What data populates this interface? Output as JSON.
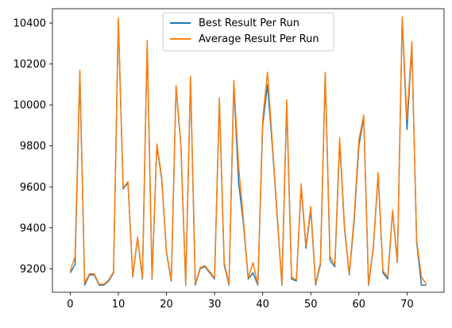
{
  "chart_data": {
    "type": "line",
    "title": "",
    "xlabel": "",
    "ylabel": "",
    "xlim": [
      -3.7,
      77.7
    ],
    "ylim": [
      9085,
      10470
    ],
    "xticks": [
      0,
      10,
      20,
      30,
      40,
      50,
      60,
      70
    ],
    "yticks": [
      9200,
      9400,
      9600,
      9800,
      10000,
      10200,
      10400
    ],
    "grid": false,
    "legend_position": "top-center",
    "x": [
      0,
      1,
      2,
      3,
      4,
      5,
      6,
      7,
      8,
      9,
      10,
      11,
      12,
      13,
      14,
      15,
      16,
      17,
      18,
      19,
      20,
      21,
      22,
      23,
      24,
      25,
      26,
      27,
      28,
      29,
      30,
      31,
      32,
      33,
      34,
      35,
      36,
      37,
      38,
      39,
      40,
      41,
      42,
      43,
      44,
      45,
      46,
      47,
      48,
      49,
      50,
      51,
      52,
      53,
      54,
      55,
      56,
      57,
      58,
      59,
      60,
      61,
      62,
      63,
      64,
      65,
      66,
      67,
      68,
      69,
      70,
      71,
      72,
      73,
      74
    ],
    "series": [
      {
        "name": "Best Result Per Run",
        "color": "#1f77b4",
        "values": [
          9180,
          9220,
          10150,
          9120,
          9170,
          9170,
          9120,
          9120,
          9140,
          9180,
          10410,
          9590,
          9620,
          9160,
          9350,
          9150,
          10300,
          9150,
          9800,
          9640,
          9280,
          9140,
          10090,
          9800,
          9120,
          10130,
          9120,
          9200,
          9210,
          9180,
          9150,
          10020,
          9220,
          9120,
          10100,
          9620,
          9420,
          9150,
          9180,
          9120,
          9900,
          10100,
          9800,
          9460,
          9120,
          10010,
          9150,
          9140,
          9600,
          9300,
          9490,
          9120,
          9220,
          10150,
          9240,
          9210,
          9820,
          9400,
          9170,
          9430,
          9800,
          9940,
          9120,
          9300,
          9660,
          9180,
          9150,
          9480,
          9230,
          10420,
          9880,
          10290,
          9330,
          9120,
          9120
        ]
      },
      {
        "name": "Average Result Per Run",
        "color": "#ff7f0e",
        "values": [
          9190,
          9260,
          10170,
          9130,
          9175,
          9175,
          9125,
          9125,
          9145,
          9185,
          10425,
          9595,
          9625,
          9165,
          9355,
          9155,
          10315,
          9155,
          9810,
          9650,
          9285,
          9145,
          10095,
          9805,
          9125,
          10140,
          9125,
          9205,
          9215,
          9185,
          9155,
          10035,
          9230,
          9125,
          10120,
          9700,
          9440,
          9155,
          9230,
          9125,
          9930,
          10160,
          9820,
          9470,
          9125,
          10025,
          9160,
          9145,
          9615,
          9310,
          9505,
          9125,
          9230,
          10160,
          9260,
          9220,
          9840,
          9410,
          9175,
          9450,
          9830,
          9950,
          9125,
          9310,
          9670,
          9190,
          9160,
          9485,
          9235,
          10430,
          9930,
          10310,
          9340,
          9160,
          9125
        ]
      }
    ]
  }
}
